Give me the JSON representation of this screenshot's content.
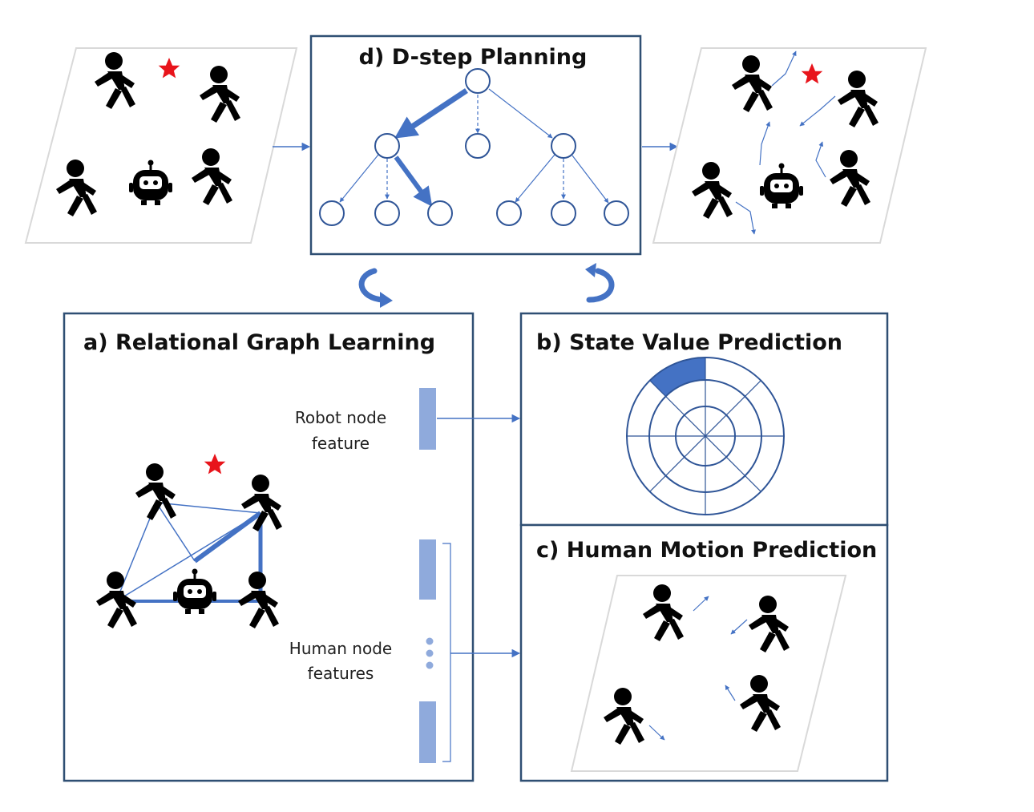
{
  "panels": {
    "planning": {
      "title": "d) D-step Planning"
    },
    "relational": {
      "title": "a) Relational Graph Learning",
      "robot_feature_line1": "Robot node",
      "robot_feature_line2": "feature",
      "human_features_line1": "Human node",
      "human_features_line2": "features"
    },
    "state_value": {
      "title": "b) State Value Prediction"
    },
    "human_motion": {
      "title": "c) Human Motion Prediction"
    }
  },
  "colors": {
    "accent": "#4472C4",
    "feature_bar": "#8FAADC",
    "goal_star": "#E8141B",
    "frame": "#2F4F73",
    "figure": "#000000"
  },
  "icons": [
    "human-icon",
    "robot-icon",
    "goal-star-icon",
    "rotate-arrow-icon"
  ]
}
